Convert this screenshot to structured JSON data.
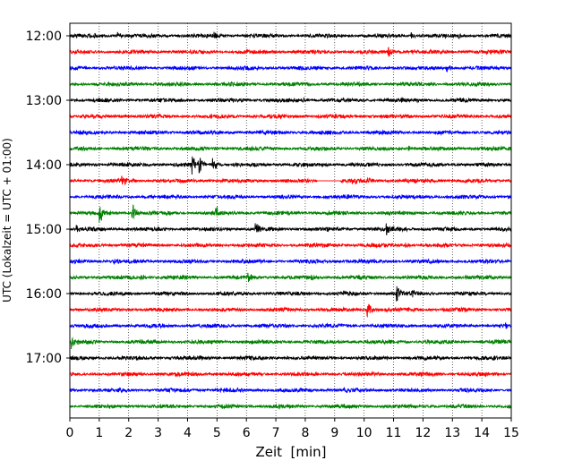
{
  "chart_data": {
    "type": "line",
    "title": "",
    "xlabel": "Zeit  [min]",
    "ylabel": "UTC (Lokalzeit = UTC + 01:00)",
    "xlim": [
      0,
      15
    ],
    "x_ticks": [
      0,
      1,
      2,
      3,
      4,
      5,
      6,
      7,
      8,
      9,
      10,
      11,
      12,
      13,
      14,
      15
    ],
    "y_tick_labels": [
      "12:00",
      "13:00",
      "14:00",
      "15:00",
      "16:00",
      "17:00"
    ],
    "grid": "vertical dotted",
    "line_colors": [
      "#000000",
      "#ff0000",
      "#0000ff",
      "#008000"
    ],
    "traces": [
      {
        "start": "12:00",
        "color": "#000000",
        "events": [
          {
            "t": 1.6,
            "a": 0.4
          },
          {
            "t": 4.9,
            "a": 0.3
          },
          {
            "t": 11.6,
            "a": 0.4
          },
          {
            "t": 13.2,
            "a": 0.35
          }
        ]
      },
      {
        "start": "12:15",
        "color": "#ff0000",
        "events": [
          {
            "t": 10.8,
            "a": 0.8
          },
          {
            "t": 11.6,
            "a": 0.3
          }
        ]
      },
      {
        "start": "12:30",
        "color": "#0000ff",
        "events": [
          {
            "t": 12.8,
            "a": 0.6
          }
        ]
      },
      {
        "start": "12:45",
        "color": "#008000",
        "events": [
          {
            "t": 3.2,
            "a": 0.3
          }
        ]
      },
      {
        "start": "13:00",
        "color": "#000000",
        "events": [
          {
            "t": 7.9,
            "a": 0.35
          }
        ]
      },
      {
        "start": "13:15",
        "color": "#ff0000",
        "events": []
      },
      {
        "start": "13:30",
        "color": "#0000ff",
        "events": []
      },
      {
        "start": "13:45",
        "color": "#008000",
        "events": [
          {
            "t": 11.5,
            "a": 0.3
          }
        ]
      },
      {
        "start": "14:00",
        "color": "#000000",
        "events": [
          {
            "t": 4.15,
            "a": 1.2
          },
          {
            "t": 4.35,
            "a": 1.0
          },
          {
            "t": 4.85,
            "a": 1.1
          }
        ]
      },
      {
        "start": "14:15",
        "color": "#ff0000",
        "events": [
          {
            "t": 1.75,
            "a": 0.9
          },
          {
            "t": 9.6,
            "a": 0.5
          },
          {
            "t": 10.1,
            "a": 0.4
          }
        ],
        "gaps": [
          [
            8.4,
            9.2
          ]
        ]
      },
      {
        "start": "14:30",
        "color": "#0000ff",
        "events": []
      },
      {
        "start": "14:45",
        "color": "#008000",
        "events": [
          {
            "t": 1.0,
            "a": 1.5
          },
          {
            "t": 2.1,
            "a": 1.3
          },
          {
            "t": 4.95,
            "a": 0.7
          }
        ]
      },
      {
        "start": "15:00",
        "color": "#000000",
        "events": [
          {
            "t": 0.2,
            "a": 0.5
          },
          {
            "t": 6.3,
            "a": 0.9
          },
          {
            "t": 10.75,
            "a": 1.0
          },
          {
            "t": 11.3,
            "a": 0.5
          }
        ]
      },
      {
        "start": "15:15",
        "color": "#ff0000",
        "events": [
          {
            "t": 11.4,
            "a": 0.4
          }
        ]
      },
      {
        "start": "15:30",
        "color": "#0000ff",
        "events": [
          {
            "t": 1.5,
            "a": 0.3
          }
        ]
      },
      {
        "start": "15:45",
        "color": "#008000",
        "events": [
          {
            "t": 2.4,
            "a": 0.5
          },
          {
            "t": 6.05,
            "a": 0.6
          },
          {
            "t": 8.2,
            "a": 0.35
          }
        ]
      },
      {
        "start": "16:00",
        "color": "#000000",
        "events": [
          {
            "t": 11.1,
            "a": 1.1
          },
          {
            "t": 11.6,
            "a": 0.6
          },
          {
            "t": 9.3,
            "a": 0.3
          }
        ]
      },
      {
        "start": "16:15",
        "color": "#ff0000",
        "events": [
          {
            "t": 10.1,
            "a": 1.3
          }
        ]
      },
      {
        "start": "16:30",
        "color": "#0000ff",
        "events": [
          {
            "t": 3.0,
            "a": 0.35
          },
          {
            "t": 6.6,
            "a": 0.4
          },
          {
            "t": 14.8,
            "a": 0.35
          }
        ]
      },
      {
        "start": "16:45",
        "color": "#008000",
        "events": [
          {
            "t": 0.05,
            "a": 0.8
          }
        ]
      },
      {
        "start": "17:00",
        "color": "#000000",
        "events": []
      },
      {
        "start": "17:15",
        "color": "#ff0000",
        "events": []
      },
      {
        "start": "17:30",
        "color": "#0000ff",
        "events": [
          {
            "t": 9.3,
            "a": 0.3
          }
        ]
      },
      {
        "start": "17:45",
        "color": "#008000",
        "events": []
      }
    ]
  }
}
